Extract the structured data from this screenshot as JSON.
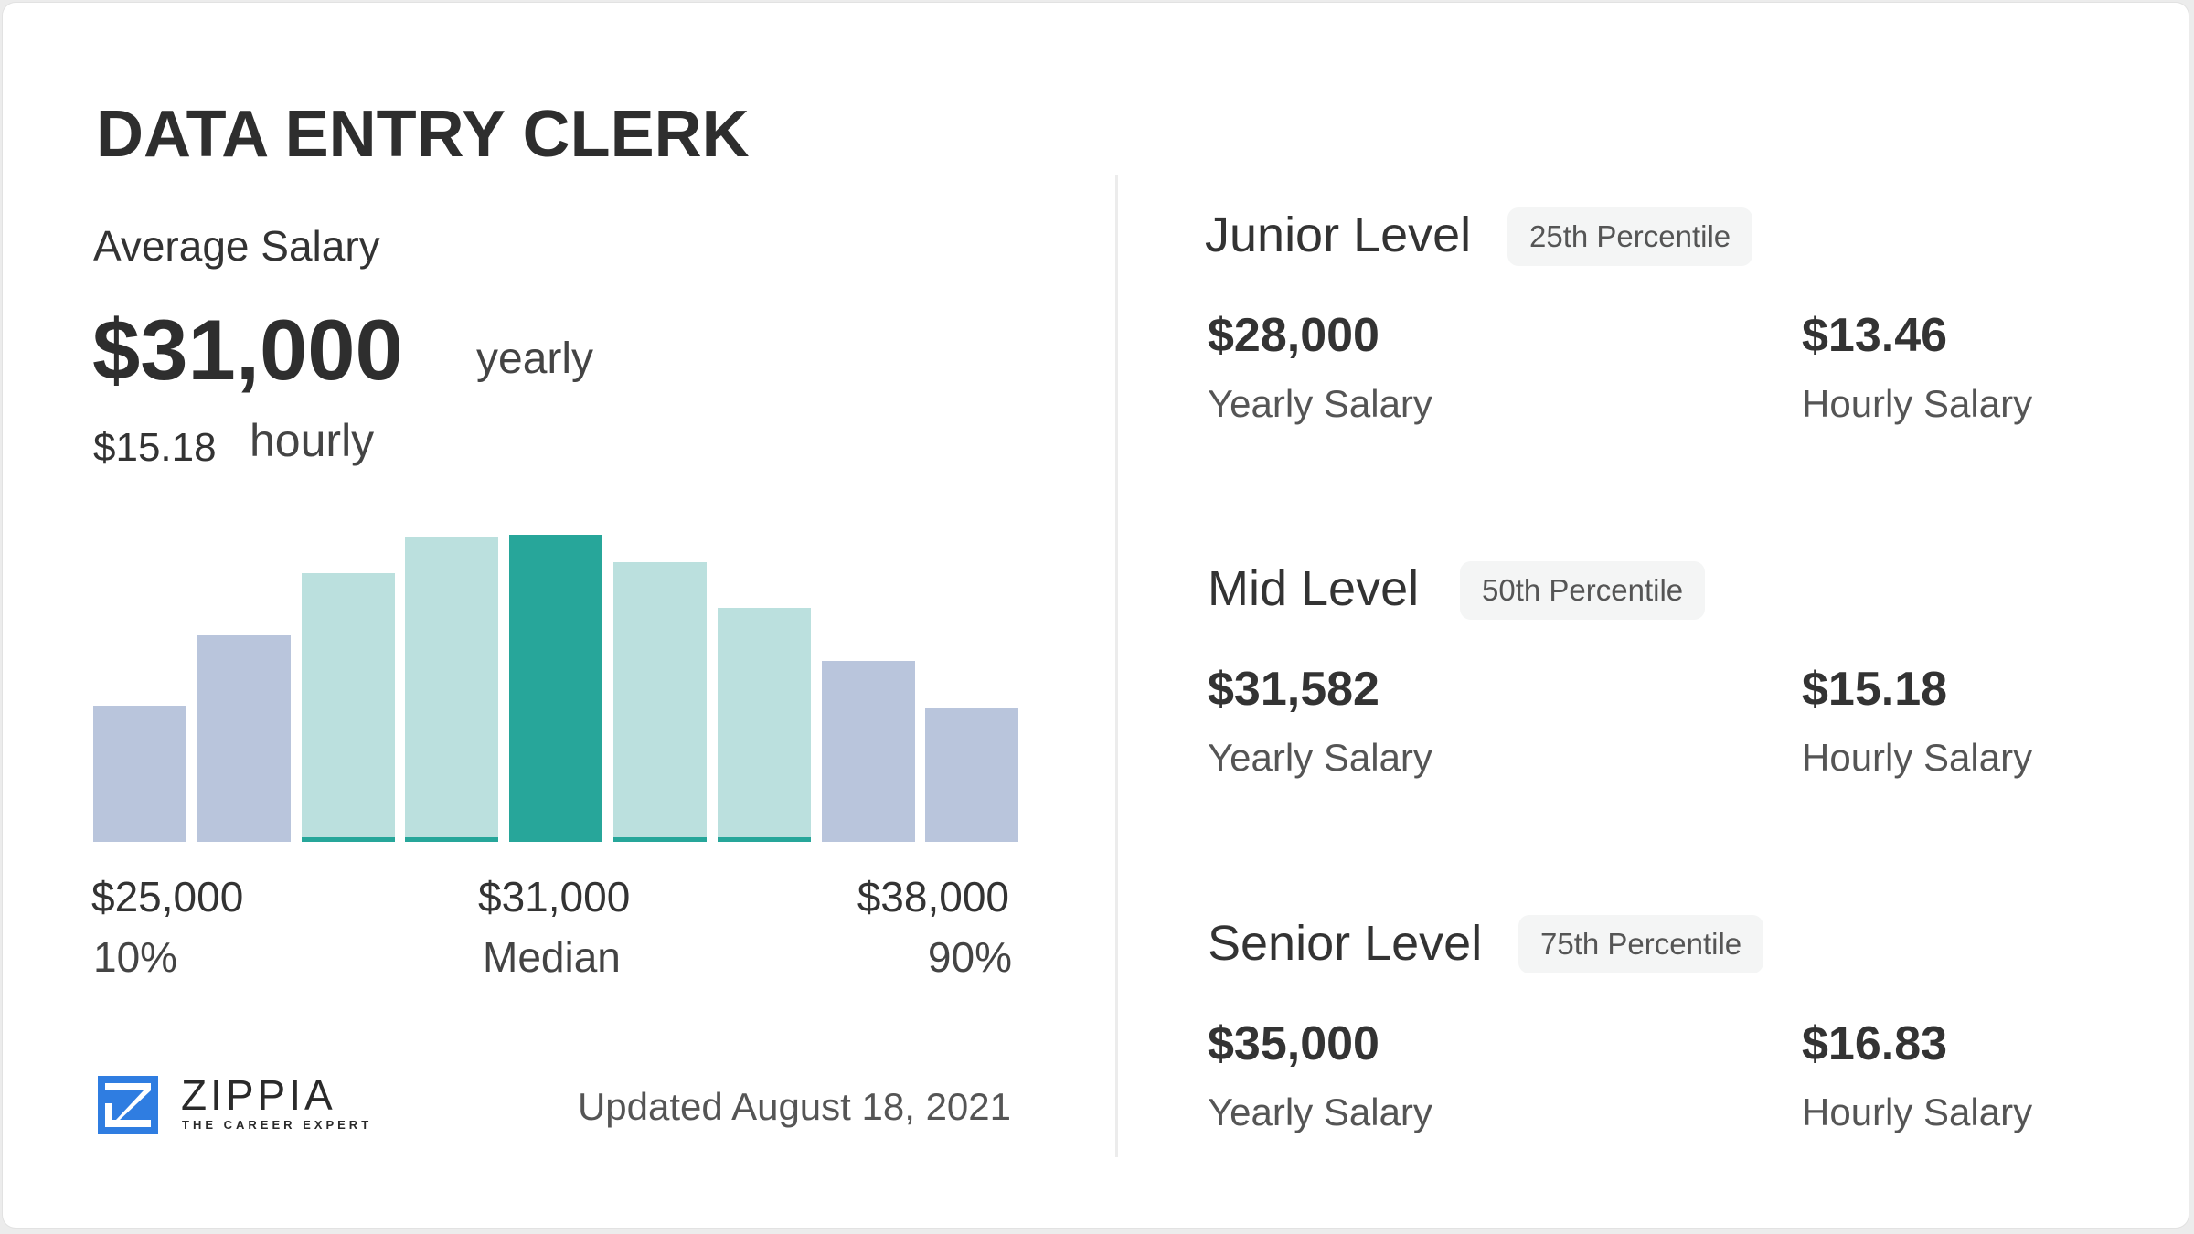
{
  "header": {
    "title": "DATA ENTRY CLERK"
  },
  "average": {
    "label": "Average Salary",
    "yearly_value": "$31,000",
    "yearly_unit": "yearly",
    "hourly_value": "$15.18",
    "hourly_unit": "hourly"
  },
  "axis": {
    "low_value": "$25,000",
    "low_pct": "10%",
    "mid_value": "$31,000",
    "mid_pct": "Median",
    "high_value": "$38,000",
    "high_pct": "90%"
  },
  "footer": {
    "brand": "ZIPPIA",
    "tagline": "THE CAREER EXPERT",
    "updated": "Updated August 18, 2021"
  },
  "levels": [
    {
      "name": "Junior Level",
      "percentile": "25th Percentile",
      "yearly": "$28,000",
      "yearly_label": "Yearly Salary",
      "hourly": "$13.46",
      "hourly_label": "Hourly Salary"
    },
    {
      "name": "Mid Level",
      "percentile": "50th Percentile",
      "yearly": "$31,582",
      "yearly_label": "Yearly Salary",
      "hourly": "$15.18",
      "hourly_label": "Hourly Salary"
    },
    {
      "name": "Senior Level",
      "percentile": "75th Percentile",
      "yearly": "$35,000",
      "yearly_label": "Yearly Salary",
      "hourly": "$16.83",
      "hourly_label": "Hourly Salary"
    }
  ],
  "colors": {
    "outer_bar": "#b9c5dc",
    "inner_bar": "#bbe0de",
    "median_bar": "#27a69a",
    "accent_stripe": "#26a69a",
    "logo_blue": "#2f7de1"
  },
  "chart_data": {
    "type": "bar",
    "title": "Data Entry Clerk salary distribution",
    "categories": [
      "b1",
      "b2",
      "b3",
      "b4",
      "b5",
      "b6",
      "b7",
      "b8",
      "b9"
    ],
    "values": [
      149,
      226,
      294,
      334,
      336,
      306,
      256,
      198,
      146
    ],
    "highlight_index": 4,
    "bar_roles": [
      "outer",
      "outer",
      "inner",
      "inner",
      "median",
      "inner",
      "inner",
      "outer",
      "outer"
    ],
    "xlabel_ticks": [
      {
        "position": "left",
        "value": "$25,000",
        "label": "10%"
      },
      {
        "position": "center",
        "value": "$31,000",
        "label": "Median"
      },
      {
        "position": "right",
        "value": "$38,000",
        "label": "90%"
      }
    ],
    "xlabel": "",
    "ylabel": "",
    "grid": false,
    "legend": "none"
  }
}
